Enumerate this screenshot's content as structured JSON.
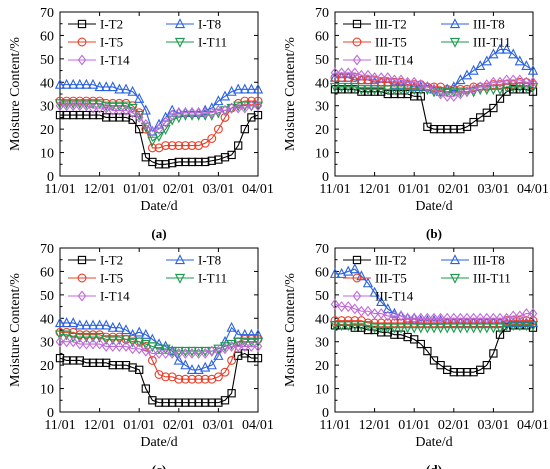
{
  "colors": {
    "T2": "#000000",
    "T8": "#2a62e0",
    "T5": "#e8402a",
    "T11": "#1a9a4a",
    "T14": "#c06ad8"
  },
  "markers": {
    "T2": "square",
    "T8": "triangle-up",
    "T5": "circle",
    "T11": "triangle-down",
    "T14": "diamond"
  },
  "chart_data": [
    {
      "type": "line",
      "panel_label": "(a)",
      "xlabel": "Date/d",
      "ylabel": "Moisture Content/%",
      "xticks": [
        "11/01",
        "12/01",
        "01/01",
        "02/01",
        "03/01",
        "04/01"
      ],
      "ylim": [
        0,
        70
      ],
      "yticks": [
        0,
        10,
        20,
        30,
        40,
        50,
        60,
        70
      ],
      "x_count": 31,
      "series": [
        {
          "name": "I-T2",
          "key": "T2",
          "values": [
            26,
            26,
            26,
            26,
            26,
            26,
            26,
            25,
            25,
            25,
            25,
            24,
            20,
            8,
            6,
            5,
            5,
            5.5,
            6,
            6,
            6,
            6,
            6,
            6.5,
            7,
            8,
            9,
            13,
            20,
            25,
            26
          ]
        },
        {
          "name": "I-T8",
          "key": "T8",
          "values": [
            39,
            39,
            39,
            39,
            39,
            39,
            38,
            38,
            38,
            37,
            37,
            36,
            33,
            28,
            19,
            22,
            25,
            28,
            27,
            27,
            27,
            27,
            28,
            29,
            32,
            34,
            36,
            37,
            37,
            37,
            37
          ]
        },
        {
          "name": "I-T5",
          "key": "T5",
          "values": [
            32,
            32,
            32,
            32,
            32,
            32,
            32,
            31,
            31,
            31,
            31,
            30,
            27,
            20,
            12,
            12,
            13,
            13,
            13,
            13,
            13,
            13,
            14,
            16,
            20,
            25,
            29,
            31,
            32,
            32,
            32
          ]
        },
        {
          "name": "I-T11",
          "key": "T11",
          "values": [
            31,
            31,
            31,
            31,
            31,
            31,
            31,
            30,
            30,
            30,
            30,
            29,
            26,
            21,
            15,
            17,
            20,
            24,
            25,
            26,
            26,
            26,
            26,
            26,
            27,
            28,
            29,
            30,
            30,
            30,
            30
          ]
        },
        {
          "name": "I-T14",
          "key": "T14",
          "values": [
            30,
            30,
            30,
            30,
            30,
            29,
            29,
            29,
            28,
            28,
            28,
            27,
            25,
            22,
            19,
            20,
            23,
            26,
            27,
            27,
            27,
            27,
            27,
            27,
            28,
            28,
            29,
            29,
            29,
            30,
            30
          ]
        }
      ]
    },
    {
      "type": "line",
      "panel_label": "(b)",
      "xlabel": "Date/d",
      "ylabel": "Moisture Content/%",
      "xticks": [
        "11/01",
        "12/01",
        "01/01",
        "02/01",
        "03/01",
        "04/01"
      ],
      "ylim": [
        0,
        70
      ],
      "yticks": [
        0,
        10,
        20,
        30,
        40,
        50,
        60,
        70
      ],
      "x_count": 31,
      "series": [
        {
          "name": "III-T2",
          "key": "T2",
          "values": [
            37,
            37,
            37,
            37,
            36,
            36,
            36,
            36,
            35,
            35,
            35,
            35,
            34,
            34,
            21,
            20,
            20,
            20,
            20,
            20,
            21,
            23,
            25,
            27,
            29,
            33,
            36,
            37,
            37,
            37,
            36
          ]
        },
        {
          "name": "III-T8",
          "key": "T8",
          "values": [
            42,
            42,
            42,
            41,
            41,
            41,
            40,
            40,
            40,
            39,
            39,
            39,
            38,
            38,
            38,
            37,
            36,
            37,
            38,
            41,
            43,
            45,
            47,
            49,
            52,
            54,
            54,
            52,
            49,
            47,
            45
          ]
        },
        {
          "name": "III-T5",
          "key": "T5",
          "values": [
            42,
            42,
            42,
            42,
            41,
            41,
            41,
            40,
            40,
            40,
            40,
            39,
            39,
            39,
            38,
            38,
            38,
            37,
            37,
            37,
            37,
            38,
            38,
            38,
            39,
            39,
            39,
            39,
            40,
            40,
            39
          ]
        },
        {
          "name": "III-T11",
          "key": "T11",
          "values": [
            38,
            38,
            38,
            38,
            37,
            37,
            37,
            37,
            37,
            37,
            37,
            37,
            37,
            37,
            37,
            36,
            36,
            36,
            36,
            36,
            36,
            36,
            37,
            37,
            37,
            37,
            38,
            38,
            38,
            38,
            38
          ]
        },
        {
          "name": "III-T14",
          "key": "T14",
          "values": [
            44,
            44,
            44,
            44,
            43,
            43,
            42,
            42,
            42,
            41,
            41,
            40,
            40,
            39,
            38,
            37,
            35,
            34,
            34,
            35,
            36,
            37,
            38,
            39,
            40,
            40,
            41,
            41,
            41,
            40,
            40
          ]
        }
      ]
    },
    {
      "type": "line",
      "panel_label": "(c)",
      "xlabel": "Date/d",
      "ylabel": "Moisture Content/%",
      "xticks": [
        "11/01",
        "12/01",
        "01/01",
        "02/01",
        "03/01",
        "04/01"
      ],
      "ylim": [
        0,
        70
      ],
      "yticks": [
        0,
        10,
        20,
        30,
        40,
        50,
        60,
        70
      ],
      "x_count": 31,
      "series": [
        {
          "name": "I-T2",
          "key": "T2",
          "values": [
            23,
            22,
            22,
            22,
            21,
            21,
            21,
            21,
            20,
            20,
            20,
            19,
            18,
            10,
            5,
            4,
            4,
            4,
            4,
            4,
            4,
            4,
            4,
            4,
            4,
            5,
            8,
            24,
            25,
            23,
            23
          ]
        },
        {
          "name": "I-T8",
          "key": "T8",
          "values": [
            38,
            38,
            38,
            37,
            37,
            37,
            37,
            37,
            36,
            36,
            35,
            33,
            34,
            33,
            31,
            29,
            28,
            26,
            22,
            20,
            18,
            18,
            19,
            20,
            24,
            30,
            36,
            33,
            33,
            33,
            33
          ]
        },
        {
          "name": "I-T5",
          "key": "T5",
          "values": [
            34,
            34,
            34,
            33,
            33,
            33,
            33,
            32,
            32,
            32,
            31,
            31,
            30,
            28,
            22,
            16,
            15,
            15,
            14,
            14,
            14,
            14,
            14,
            14,
            15,
            17,
            22,
            30,
            31,
            31,
            31
          ]
        },
        {
          "name": "I-T11",
          "key": "T11",
          "values": [
            33,
            33,
            32,
            32,
            32,
            32,
            32,
            31,
            31,
            31,
            31,
            30,
            30,
            29,
            28,
            27,
            27,
            26,
            26,
            26,
            26,
            26,
            26,
            26,
            27,
            28,
            29,
            30,
            30,
            30,
            30
          ]
        },
        {
          "name": "I-T14",
          "key": "T14",
          "values": [
            30,
            30,
            30,
            29,
            29,
            29,
            29,
            28,
            28,
            28,
            28,
            27,
            27,
            26,
            25,
            25,
            25,
            25,
            25,
            25,
            25,
            25,
            25,
            26,
            26,
            27,
            28,
            28,
            28,
            28,
            28
          ]
        }
      ]
    },
    {
      "type": "line",
      "panel_label": "(d)",
      "xlabel": "Date/d",
      "ylabel": "Moisture Content/%",
      "xticks": [
        "11/01",
        "12/01",
        "01/01",
        "02/01",
        "03/01",
        "04/01"
      ],
      "ylim": [
        0,
        70
      ],
      "yticks": [
        0,
        10,
        20,
        30,
        40,
        50,
        60,
        70
      ],
      "x_count": 31,
      "series": [
        {
          "name": "III-T2",
          "key": "T2",
          "values": [
            37,
            37,
            37,
            36,
            36,
            35,
            35,
            34,
            34,
            33,
            33,
            32,
            31,
            29,
            26,
            22,
            20,
            18,
            17,
            17,
            17,
            17,
            18,
            20,
            25,
            33,
            36,
            37,
            37,
            37,
            36
          ]
        },
        {
          "name": "III-T8",
          "key": "T8",
          "values": [
            59,
            59,
            60,
            61,
            58,
            55,
            51,
            47,
            44,
            42,
            41,
            40,
            40,
            39,
            39,
            39,
            39,
            38,
            38,
            38,
            38,
            38,
            38,
            38,
            38,
            38,
            38,
            38,
            38,
            38,
            38
          ]
        },
        {
          "name": "III-T5",
          "key": "T5",
          "values": [
            39,
            39,
            39,
            39,
            39,
            38,
            38,
            38,
            38,
            38,
            38,
            38,
            38,
            38,
            38,
            38,
            38,
            38,
            38,
            38,
            38,
            38,
            38,
            38,
            38,
            38,
            39,
            39,
            39,
            39,
            39
          ]
        },
        {
          "name": "III-T11",
          "key": "T11",
          "values": [
            37,
            37,
            37,
            37,
            37,
            37,
            36,
            36,
            36,
            36,
            36,
            36,
            36,
            36,
            36,
            36,
            36,
            36,
            36,
            36,
            36,
            36,
            36,
            36,
            36,
            36,
            37,
            37,
            37,
            37,
            37
          ]
        },
        {
          "name": "III-T14",
          "key": "T14",
          "values": [
            46,
            45,
            45,
            44,
            43,
            43,
            42,
            42,
            41,
            41,
            41,
            40,
            40,
            40,
            40,
            40,
            40,
            40,
            40,
            40,
            40,
            40,
            40,
            40,
            40,
            40,
            40,
            41,
            41,
            42,
            42
          ]
        }
      ]
    }
  ]
}
